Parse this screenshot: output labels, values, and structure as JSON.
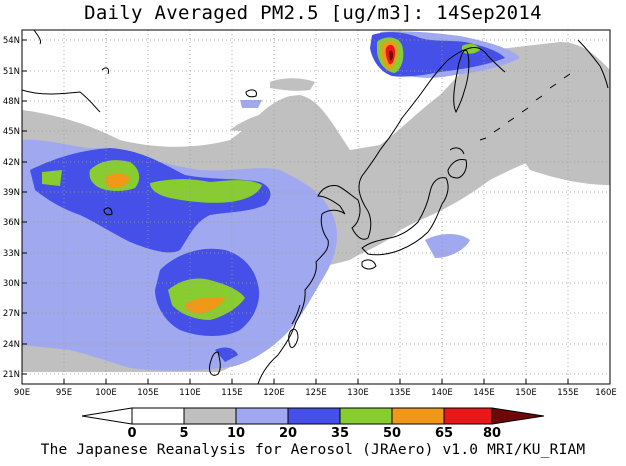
{
  "title": "Daily Averaged PM2.5 [ug/m3]: 14Sep2014",
  "footer": "The Japanese Reanalysis for Aerosol (JRAero) v1.0 MRI/KU_RIAM",
  "map": {
    "lon_range": [
      90,
      160
    ],
    "lat_range": [
      20,
      55
    ],
    "lon_ticks": [
      "90E",
      "95E",
      "100E",
      "105E",
      "110E",
      "115E",
      "120E",
      "125E",
      "130E",
      "135E",
      "140E",
      "145E",
      "150E",
      "155E",
      "160E"
    ],
    "lat_ticks": [
      "21N",
      "24N",
      "27N",
      "30N",
      "33N",
      "36N",
      "39N",
      "42N",
      "45N",
      "48N",
      "51N",
      "54N"
    ],
    "gridlines": true
  },
  "colorbar": {
    "labels": [
      "0",
      "5",
      "10",
      "20",
      "35",
      "50",
      "65",
      "80"
    ],
    "colors": [
      "#ffffff",
      "#c0c0c0",
      "#a0a8f0",
      "#4450e8",
      "#88cc30",
      "#f09818",
      "#e81818",
      "#6e0808"
    ]
  }
}
